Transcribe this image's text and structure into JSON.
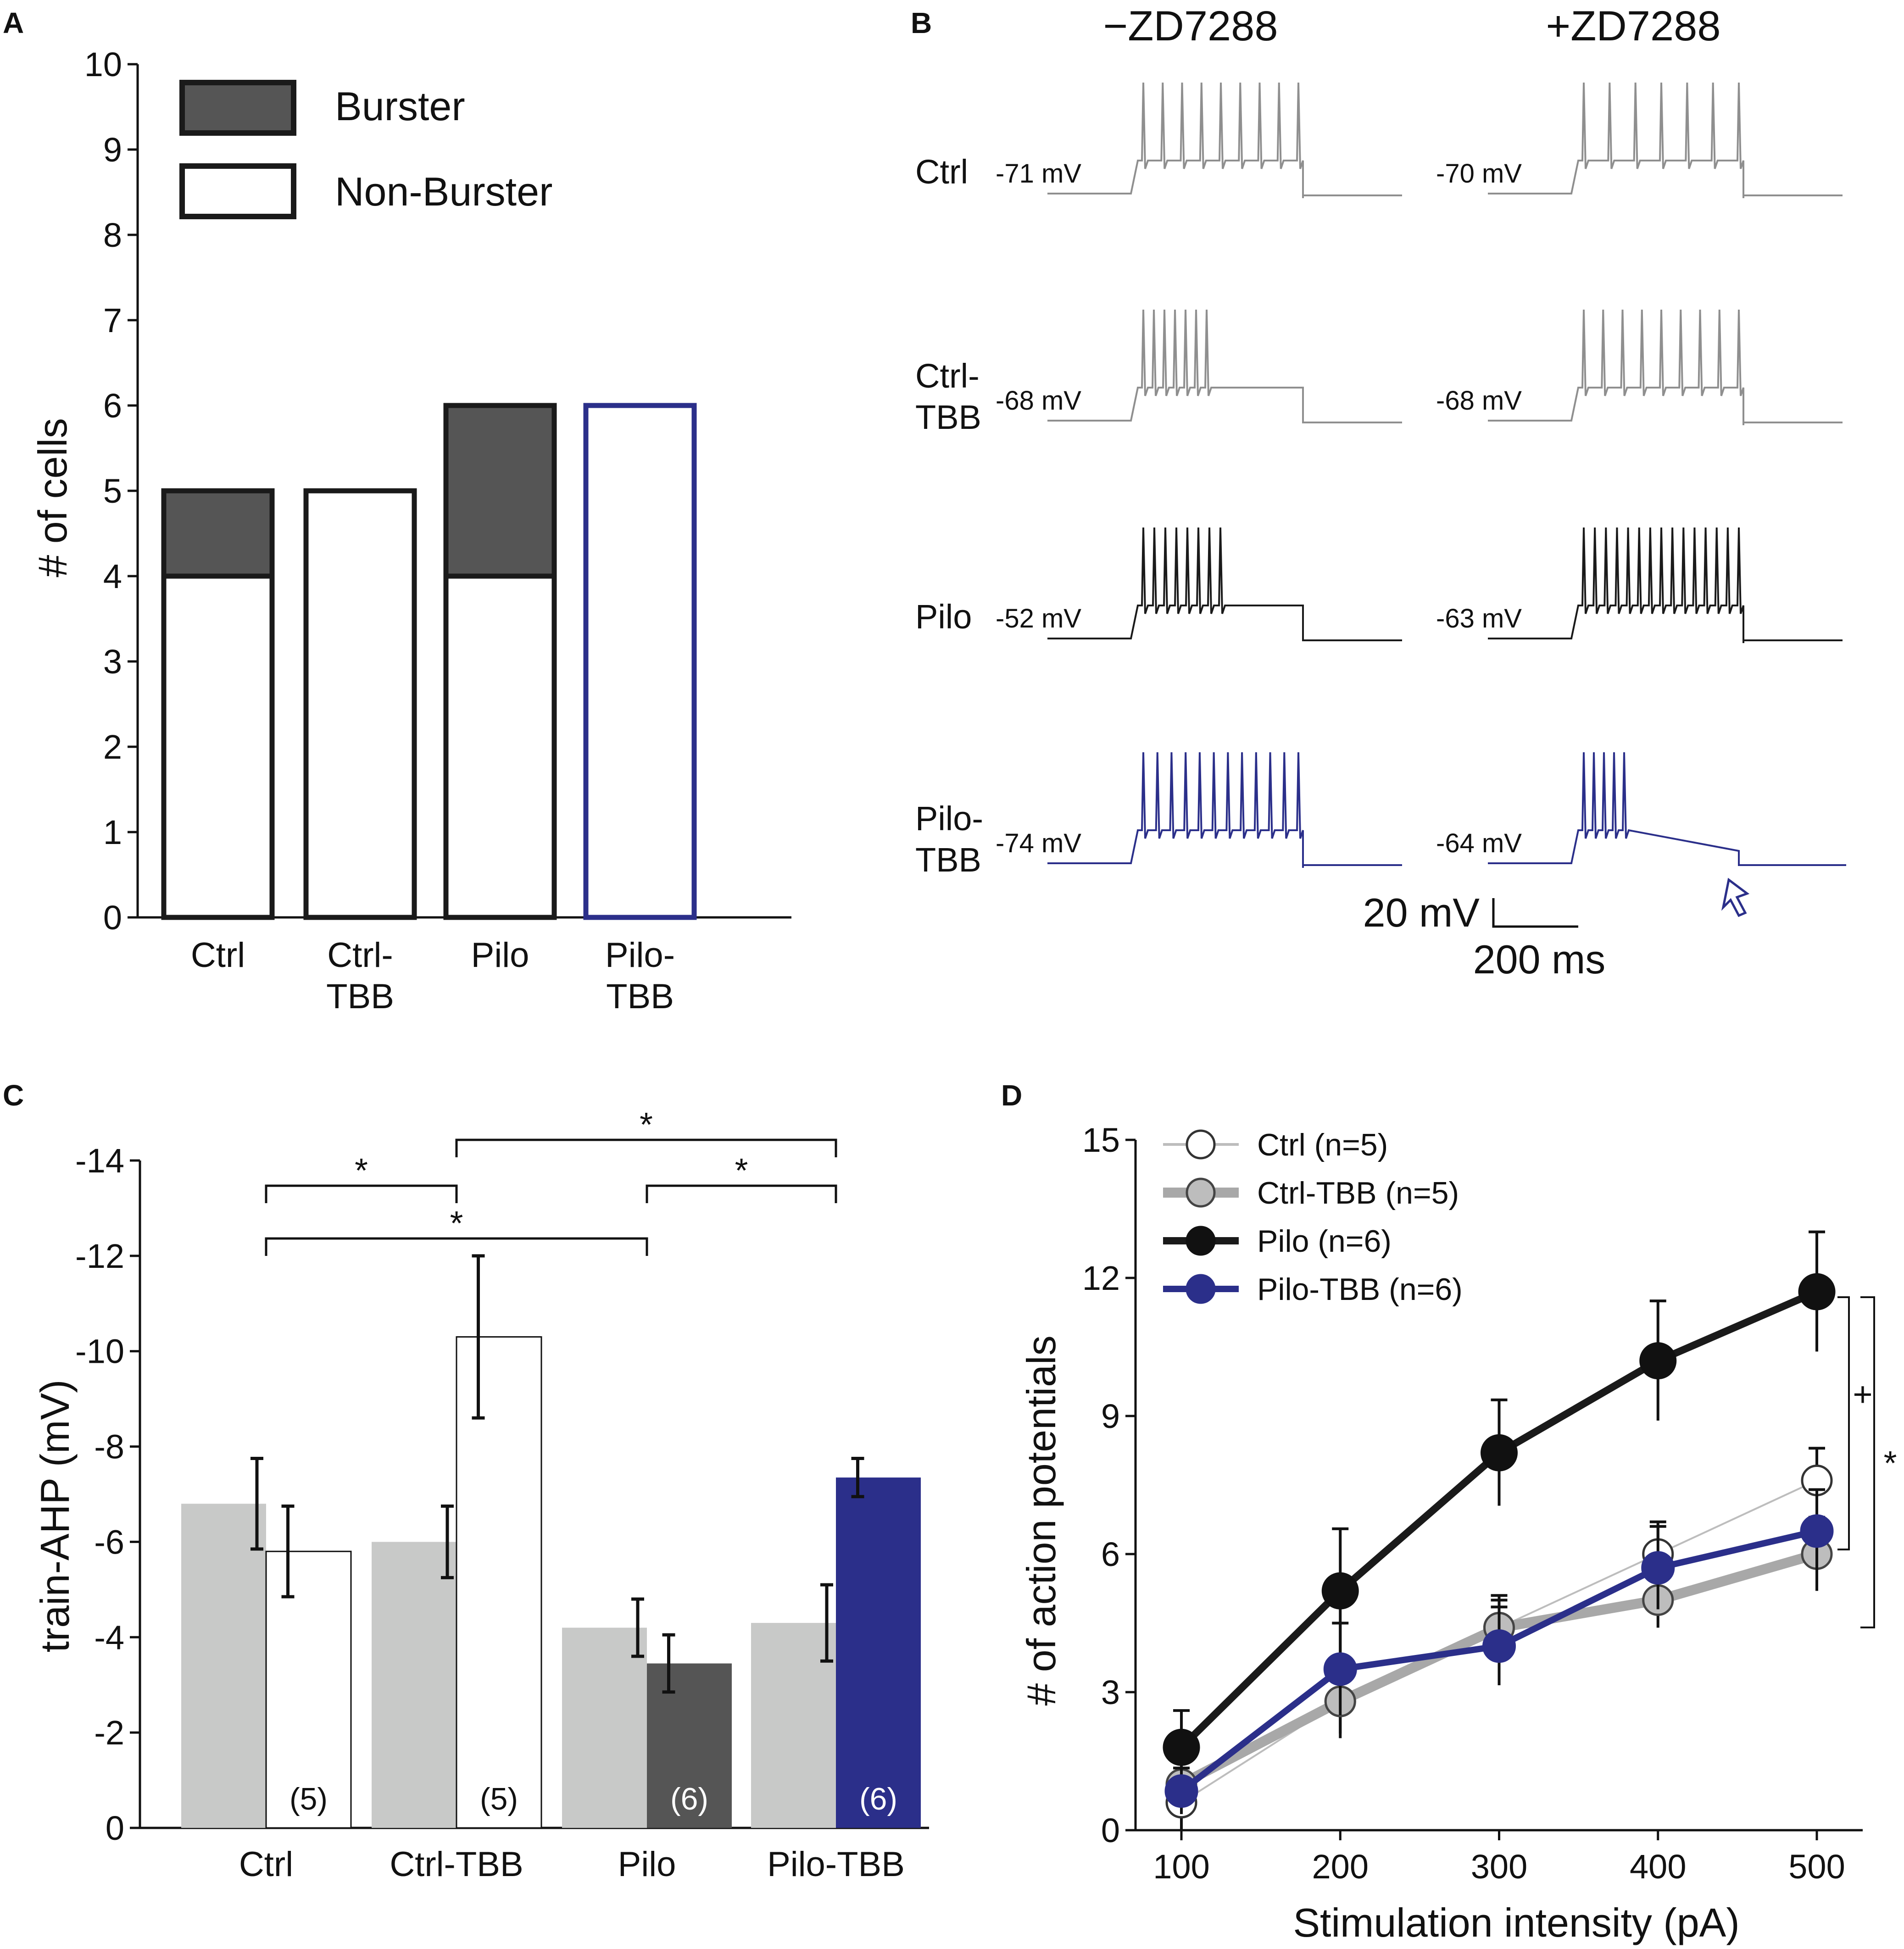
{
  "colors": {
    "burster": "#555555",
    "outline": "#1a1a1a",
    "blue": "#2b2f8a",
    "gray_trace": "#8f8f8f",
    "black_trace": "#1a1a1a",
    "light_bar": "#c8c9c8",
    "pilo_bar": "#555555"
  },
  "panel_a": {
    "letter": "A",
    "chart_data": {
      "type": "bar",
      "stacked": true,
      "categories": [
        "Ctrl",
        "Ctrl-\nTBB",
        "Pilo",
        "Pilo-\nTBB"
      ],
      "category_lines": [
        [
          "Ctrl"
        ],
        [
          "Ctrl-",
          "TBB"
        ],
        [
          "Pilo"
        ],
        [
          "Pilo-",
          "TBB"
        ]
      ],
      "series": [
        {
          "name": "Non-Burster",
          "values": [
            4,
            5,
            4,
            6
          ]
        },
        {
          "name": "Burster",
          "values": [
            1,
            0,
            2,
            0
          ]
        }
      ],
      "ylabel": "# of cells",
      "ylim": [
        0,
        10
      ],
      "yticks": [
        "0",
        "1",
        "2",
        "3",
        "4",
        "5",
        "6",
        "7",
        "8",
        "9",
        "10"
      ],
      "legend": [
        "Burster",
        "Non-Burster"
      ]
    }
  },
  "panel_b": {
    "letter": "B",
    "columns": [
      "−ZD7288",
      "+ZD7288"
    ],
    "rows": [
      {
        "label_lines": [
          "Ctrl"
        ],
        "minus": {
          "vm": "-71 mV",
          "spikes": 9,
          "color": "gray"
        },
        "plus": {
          "vm": "-70 mV",
          "spikes": 7,
          "color": "gray"
        }
      },
      {
        "label_lines": [
          "Ctrl-",
          "TBB"
        ],
        "minus": {
          "vm": "-68 mV",
          "spikes": 7,
          "color": "gray"
        },
        "plus": {
          "vm": "-68 mV",
          "spikes": 9,
          "color": "gray"
        }
      },
      {
        "label_lines": [
          "Pilo"
        ],
        "minus": {
          "vm": "-52 mV",
          "spikes": 8,
          "color": "black"
        },
        "plus": {
          "vm": "-63 mV",
          "spikes": 15,
          "color": "black"
        }
      },
      {
        "label_lines": [
          "Pilo-",
          "TBB"
        ],
        "minus": {
          "vm": "-74 mV",
          "spikes": 12,
          "color": "blue"
        },
        "plus": {
          "vm": "-64 mV",
          "spikes": 5,
          "color": "blue"
        }
      }
    ],
    "scale_v": "20 mV",
    "scale_t": "200 ms"
  },
  "panel_c": {
    "letter": "C",
    "chart_data": {
      "type": "bar",
      "categories": [
        "Ctrl",
        "Ctrl-TBB",
        "Pilo",
        "Pilo-TBB"
      ],
      "series": [
        {
          "name": "-ZD7288",
          "values": [
            -6.8,
            -6.0,
            -4.2,
            -4.3
          ],
          "errors": [
            0.95,
            0.75,
            0.6,
            0.8
          ]
        },
        {
          "name": "+ZD7288",
          "values": [
            -5.8,
            -10.3,
            -3.45,
            -7.35
          ],
          "errors": [
            0.95,
            1.7,
            0.6,
            0.4
          ]
        }
      ],
      "n_labels": [
        "(5)",
        "(5)",
        "(6)",
        "(6)"
      ],
      "ylabel": "train-AHP (mV)",
      "ylim": [
        0,
        -14
      ],
      "yticks": [
        "0",
        "-2",
        "-4",
        "-6",
        "-8",
        "-10",
        "-12",
        "-14"
      ],
      "significance": [
        {
          "from": "Ctrl",
          "to": "Ctrl-TBB",
          "label": "*"
        },
        {
          "from": "Ctrl-TBB",
          "to": "Pilo-TBB",
          "label": "*"
        },
        {
          "from": "Pilo",
          "to": "Pilo-TBB",
          "label": "*"
        },
        {
          "from": "Ctrl",
          "to": "Pilo",
          "label": "*"
        }
      ]
    }
  },
  "panel_d": {
    "letter": "D",
    "chart_data": {
      "type": "line",
      "x": [
        100,
        200,
        300,
        400,
        500
      ],
      "xlabel": "Stimulation intensity (pA)",
      "ylabel": "# of action potentials",
      "xticks": [
        "100",
        "200",
        "300",
        "400",
        "500"
      ],
      "yticks": [
        "0",
        "3",
        "6",
        "9",
        "12",
        "15"
      ],
      "ylim": [
        0,
        15
      ],
      "series": [
        {
          "name": "Ctrl (n=5)",
          "values": [
            0.6,
            2.8,
            4.4,
            6.0,
            7.6
          ],
          "errors": [
            0.6,
            0.7,
            0.6,
            0.7,
            0.7
          ]
        },
        {
          "name": "Ctrl-TBB (n=5)",
          "values": [
            1.0,
            2.8,
            4.4,
            5.0,
            6.0
          ],
          "errors": [
            0.5,
            0.8,
            0.7,
            0.6,
            0.8
          ]
        },
        {
          "name": "Pilo (n=6)",
          "values": [
            1.8,
            5.2,
            8.2,
            10.2,
            11.7
          ],
          "errors": [
            0.8,
            1.35,
            1.15,
            1.3,
            1.3
          ]
        },
        {
          "name": "Pilo-TBB (n=6)",
          "values": [
            0.85,
            3.5,
            4.0,
            5.7,
            6.5
          ],
          "errors": [
            0.5,
            1.0,
            0.85,
            0.9,
            0.9
          ]
        }
      ],
      "annotations": [
        "+",
        "*"
      ]
    }
  }
}
